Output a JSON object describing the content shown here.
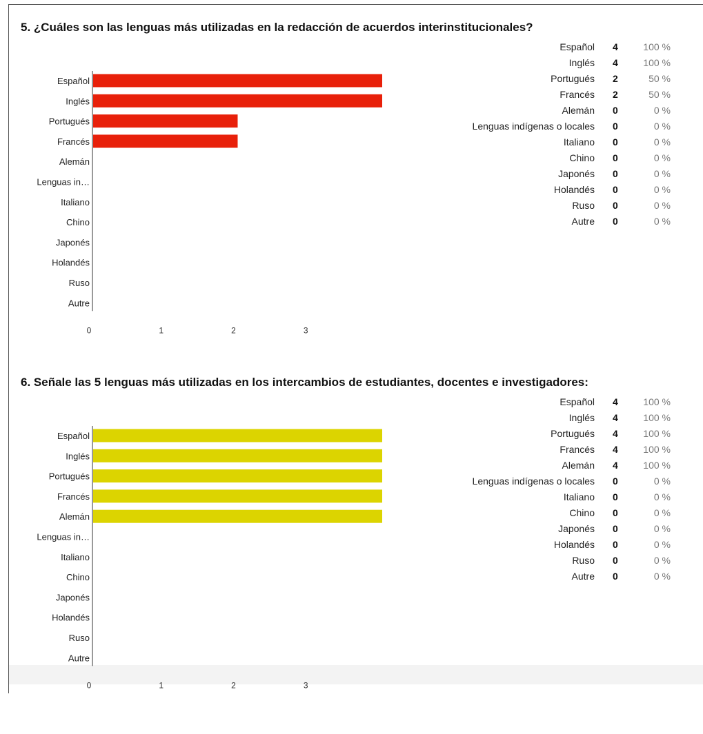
{
  "questions": [
    {
      "title": "5. ¿Cuáles son las lenguas más utilizadas en la redacción de acuerdos interinstitucionales?",
      "summary": [
        {
          "label": "Español",
          "count": "4",
          "pct": "100 %"
        },
        {
          "label": "Inglés",
          "count": "4",
          "pct": "100 %"
        },
        {
          "label": "Portugués",
          "count": "2",
          "pct": "50 %"
        },
        {
          "label": "Francés",
          "count": "2",
          "pct": "50 %"
        },
        {
          "label": "Alemán",
          "count": "0",
          "pct": "0 %"
        },
        {
          "label": "Lenguas indígenas o locales",
          "count": "0",
          "pct": "0 %"
        },
        {
          "label": "Italiano",
          "count": "0",
          "pct": "0 %"
        },
        {
          "label": "Chino",
          "count": "0",
          "pct": "0 %"
        },
        {
          "label": "Japonés",
          "count": "0",
          "pct": "0 %"
        },
        {
          "label": "Holandés",
          "count": "0",
          "pct": "0 %"
        },
        {
          "label": "Ruso",
          "count": "0",
          "pct": "0 %"
        },
        {
          "label": "Autre",
          "count": "0",
          "pct": "0 %"
        }
      ]
    },
    {
      "title": "6. Señale las 5 lenguas más utilizadas en los intercambios de estudiantes, docentes e investigadores:",
      "summary": [
        {
          "label": "Español",
          "count": "4",
          "pct": "100 %"
        },
        {
          "label": "Inglés",
          "count": "4",
          "pct": "100 %"
        },
        {
          "label": "Portugués",
          "count": "4",
          "pct": "100 %"
        },
        {
          "label": "Francés",
          "count": "4",
          "pct": "100 %"
        },
        {
          "label": "Alemán",
          "count": "4",
          "pct": "100 %"
        },
        {
          "label": "Lenguas indígenas o locales",
          "count": "0",
          "pct": "0 %"
        },
        {
          "label": "Italiano",
          "count": "0",
          "pct": "0 %"
        },
        {
          "label": "Chino",
          "count": "0",
          "pct": "0 %"
        },
        {
          "label": "Japonés",
          "count": "0",
          "pct": "0 %"
        },
        {
          "label": "Holandés",
          "count": "0",
          "pct": "0 %"
        },
        {
          "label": "Ruso",
          "count": "0",
          "pct": "0 %"
        },
        {
          "label": "Autre",
          "count": "0",
          "pct": "0 %"
        }
      ]
    }
  ],
  "chart_data": [
    {
      "type": "bar",
      "orientation": "horizontal",
      "categories": [
        "Español",
        "Inglés",
        "Portugués",
        "Francés",
        "Alemán",
        "Lenguas in…",
        "Italiano",
        "Chino",
        "Japonés",
        "Holandés",
        "Ruso",
        "Autre"
      ],
      "values": [
        4,
        4,
        2,
        2,
        0,
        0,
        0,
        0,
        0,
        0,
        0,
        0
      ],
      "xticks": [
        "0",
        "1",
        "2",
        "3"
      ],
      "xlim": [
        0,
        4
      ],
      "color": "#e8200a",
      "grid": false,
      "legend": "none"
    },
    {
      "type": "bar",
      "orientation": "horizontal",
      "categories": [
        "Español",
        "Inglés",
        "Portugués",
        "Francés",
        "Alemán",
        "Lenguas in…",
        "Italiano",
        "Chino",
        "Japonés",
        "Holandés",
        "Ruso",
        "Autre"
      ],
      "values": [
        4,
        4,
        4,
        4,
        4,
        0,
        0,
        0,
        0,
        0,
        0,
        0
      ],
      "xticks": [
        "0",
        "1",
        "2",
        "3"
      ],
      "xlim": [
        0,
        4
      ],
      "color": "#dcd400",
      "grid": false,
      "legend": "none"
    }
  ]
}
